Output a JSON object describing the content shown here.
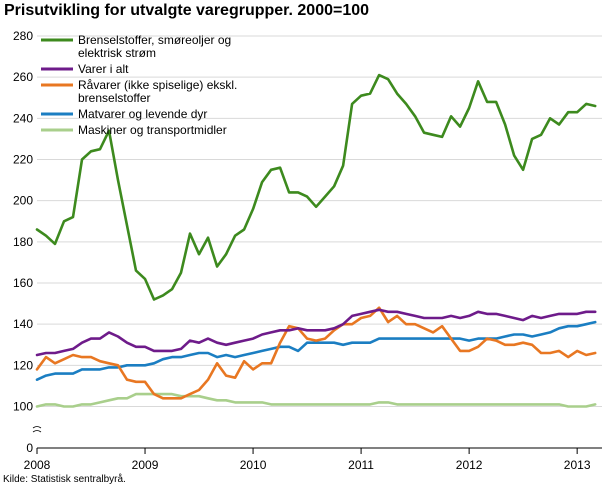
{
  "title": "Prisutvikling for utvalgte varegrupper. 2000=100",
  "source": "Kilde: Statistisk sentralbyrå.",
  "chart_data": {
    "type": "line",
    "title": "Prisutvikling for utvalgte varegrupper. 2000=100",
    "xlabel": "",
    "ylabel": "",
    "ylim": [
      0,
      280
    ],
    "yticks": [
      0,
      100,
      120,
      140,
      160,
      180,
      200,
      220,
      240,
      260,
      280
    ],
    "axis_break": true,
    "xlim": [
      2008.0,
      2013.23
    ],
    "xticks": [
      2008,
      2009,
      2010,
      2011,
      2012,
      2013
    ],
    "xtick_labels": [
      "2008",
      "2009",
      "2010",
      "2011",
      "2012",
      "2013"
    ],
    "grid": "horizontal",
    "legend_position": "top-left",
    "x_start": 2008.0,
    "x_step_months": 1,
    "series": [
      {
        "name": "Brenselstoffer, smøreoljer og elektrisk strøm",
        "color": "#3d8a1e",
        "values": [
          186,
          183,
          179,
          190,
          192,
          220,
          224,
          225,
          234,
          210,
          188,
          166,
          162,
          152,
          154,
          157,
          165,
          184,
          174,
          182,
          168,
          174,
          183,
          186,
          196,
          209,
          215,
          216,
          204,
          204,
          202,
          197,
          202,
          207,
          217,
          247,
          251,
          252,
          261,
          259,
          252,
          247,
          241,
          233,
          232,
          231,
          241,
          236,
          245,
          258,
          248,
          248,
          237,
          222,
          215,
          230,
          232,
          240,
          237,
          243,
          243,
          247,
          246
        ]
      },
      {
        "name": "Varer i alt",
        "color": "#6e1b8a",
        "values": [
          125,
          126,
          126,
          127,
          128,
          131,
          133,
          133,
          136,
          134,
          131,
          129,
          129,
          127,
          127,
          127,
          128,
          132,
          131,
          133,
          131,
          130,
          131,
          132,
          133,
          135,
          136,
          137,
          137,
          138,
          137,
          137,
          137,
          138,
          140,
          144,
          145,
          146,
          147,
          146,
          146,
          145,
          144,
          143,
          143,
          143,
          144,
          143,
          144,
          146,
          145,
          145,
          144,
          143,
          142,
          144,
          143,
          144,
          145,
          145,
          145,
          146,
          146
        ]
      },
      {
        "name": "Råvarer (ikke spiselige) ekskl. brenselstoffer",
        "color": "#e87722",
        "values": [
          118,
          124,
          121,
          123,
          125,
          124,
          124,
          122,
          121,
          120,
          113,
          112,
          112,
          106,
          104,
          104,
          104,
          106,
          108,
          113,
          121,
          115,
          114,
          122,
          118,
          121,
          121,
          131,
          139,
          138,
          133,
          132,
          133,
          137,
          140,
          140,
          143,
          144,
          148,
          141,
          144,
          140,
          140,
          138,
          136,
          139,
          133,
          127,
          127,
          129,
          133,
          132,
          130,
          130,
          131,
          130,
          126,
          126,
          127,
          124,
          127,
          125,
          126
        ]
      },
      {
        "name": "Matvarer og levende dyr",
        "color": "#1b7ec2",
        "values": [
          113,
          115,
          116,
          116,
          116,
          118,
          118,
          118,
          119,
          119,
          120,
          120,
          120,
          121,
          123,
          124,
          124,
          125,
          126,
          126,
          124,
          125,
          124,
          125,
          126,
          127,
          128,
          129,
          129,
          127,
          131,
          131,
          131,
          131,
          130,
          131,
          131,
          131,
          133,
          133,
          133,
          133,
          133,
          133,
          133,
          133,
          133,
          133,
          132,
          133,
          133,
          133,
          134,
          135,
          135,
          134,
          135,
          136,
          138,
          139,
          139,
          140,
          141
        ]
      },
      {
        "name": "Maskiner og transportmidler",
        "color": "#a9cf8c",
        "values": [
          100,
          101,
          101,
          100,
          100,
          101,
          101,
          102,
          103,
          104,
          104,
          106,
          106,
          106,
          106,
          106,
          105,
          105,
          105,
          104,
          103,
          103,
          102,
          102,
          102,
          102,
          101,
          101,
          101,
          101,
          101,
          101,
          101,
          101,
          101,
          101,
          101,
          101,
          102,
          102,
          101,
          101,
          101,
          101,
          101,
          101,
          101,
          101,
          101,
          101,
          101,
          101,
          101,
          101,
          101,
          101,
          101,
          101,
          101,
          100,
          100,
          100,
          101
        ]
      }
    ]
  }
}
